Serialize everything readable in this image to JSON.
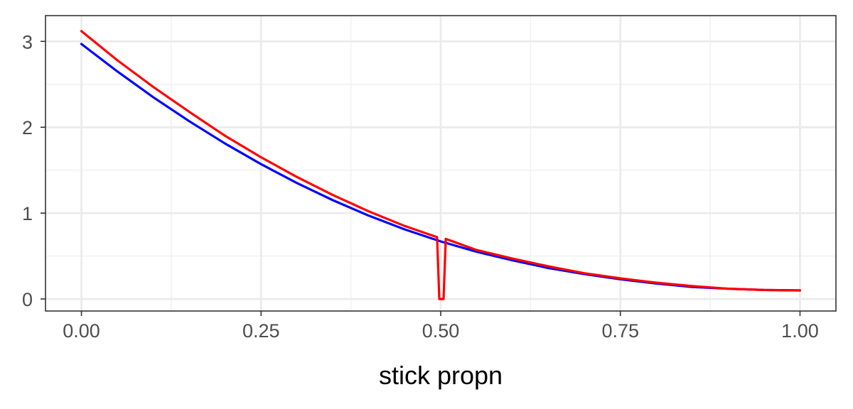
{
  "chart_data": {
    "type": "line",
    "title": "",
    "xlabel": "stick propn",
    "ylabel": "",
    "xlim": [
      -0.05,
      1.05
    ],
    "ylim": [
      -0.14,
      3.3
    ],
    "x_ticks": [
      0.0,
      0.25,
      0.5,
      0.75,
      1.0
    ],
    "x_tick_labels": [
      "0.00",
      "0.25",
      "0.50",
      "0.75",
      "1.00"
    ],
    "y_ticks": [
      0,
      1,
      2,
      3
    ],
    "y_tick_labels": [
      "0",
      "1",
      "2",
      "3"
    ],
    "grid": true,
    "legend": "none",
    "series": [
      {
        "color": "#0000ff",
        "x": [
          0.0,
          0.05,
          0.1,
          0.15,
          0.2,
          0.25,
          0.3,
          0.35,
          0.4,
          0.45,
          0.5,
          0.55,
          0.6,
          0.65,
          0.7,
          0.75,
          0.8,
          0.85,
          0.9,
          0.95,
          1.0
        ],
        "y": [
          2.97,
          2.65,
          2.35,
          2.07,
          1.81,
          1.57,
          1.35,
          1.15,
          0.97,
          0.81,
          0.67,
          0.55,
          0.45,
          0.36,
          0.29,
          0.23,
          0.18,
          0.14,
          0.12,
          0.105,
          0.1
        ]
      },
      {
        "color": "#ff0000",
        "x": [
          0.0,
          0.05,
          0.1,
          0.15,
          0.2,
          0.25,
          0.3,
          0.35,
          0.4,
          0.45,
          0.495,
          0.498,
          0.504,
          0.507,
          0.55,
          0.6,
          0.65,
          0.7,
          0.75,
          0.8,
          0.85,
          0.9,
          0.95,
          1.0
        ],
        "y": [
          3.12,
          2.78,
          2.47,
          2.18,
          1.9,
          1.65,
          1.42,
          1.21,
          1.02,
          0.85,
          0.72,
          0.0,
          0.0,
          0.7,
          0.57,
          0.47,
          0.38,
          0.3,
          0.24,
          0.19,
          0.15,
          0.12,
          0.105,
          0.1
        ]
      }
    ]
  }
}
